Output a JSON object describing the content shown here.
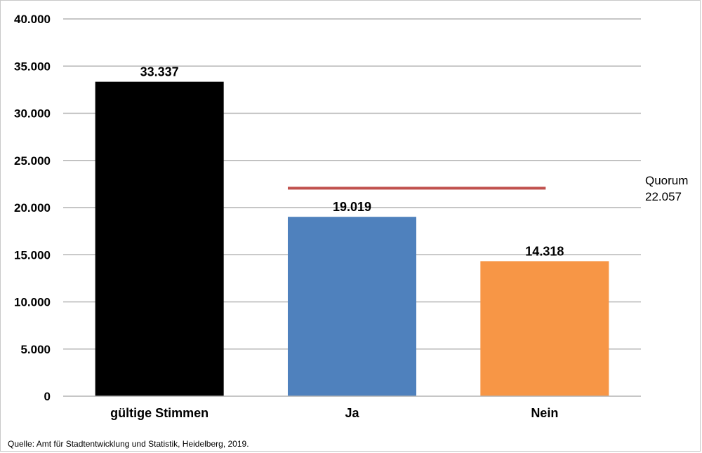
{
  "chart_data": {
    "type": "bar",
    "categories": [
      "gültige Stimmen",
      "Ja",
      "Nein"
    ],
    "values": [
      33337,
      19019,
      14318
    ],
    "value_labels": [
      "33.337",
      "19.019",
      "14.318"
    ],
    "colors": [
      "#000000",
      "#4f81bd",
      "#f79646"
    ],
    "ylim": [
      0,
      40000
    ],
    "yticks": [
      0,
      5000,
      10000,
      15000,
      20000,
      25000,
      30000,
      35000,
      40000
    ],
    "ytick_labels": [
      "0",
      "5.000",
      "10.000",
      "15.000",
      "20.000",
      "25.000",
      "30.000",
      "35.000",
      "40.000"
    ],
    "grid": true,
    "reference_line": {
      "value": 22057,
      "label_line1": "Quorum",
      "label_line2": "22.057",
      "color": "#c0504d"
    }
  },
  "source": "Quelle: Amt für Stadtentwicklung und Statistik, Heidelberg, 2019."
}
